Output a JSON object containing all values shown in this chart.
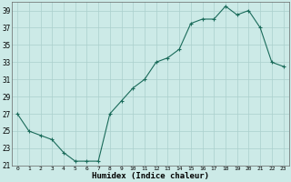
{
  "xlabel": "Humidex (Indice chaleur)",
  "x": [
    0,
    1,
    2,
    3,
    4,
    5,
    6,
    7,
    8,
    9,
    10,
    11,
    12,
    13,
    14,
    15,
    16,
    17,
    18,
    19,
    20,
    21,
    22,
    23
  ],
  "y": [
    27,
    25,
    24.5,
    24,
    22.5,
    21.5,
    21.5,
    21.5,
    27,
    28.5,
    30,
    31,
    33,
    33.5,
    34.5,
    37.5,
    38,
    38,
    39.5,
    38.5,
    39,
    37,
    33,
    32.5
  ],
  "ylim": [
    21,
    40
  ],
  "yticks": [
    21,
    23,
    25,
    27,
    29,
    31,
    33,
    35,
    37,
    39
  ],
  "xticks": [
    0,
    1,
    2,
    3,
    4,
    5,
    6,
    7,
    8,
    9,
    10,
    11,
    12,
    13,
    14,
    15,
    16,
    17,
    18,
    19,
    20,
    21,
    22,
    23
  ],
  "line_color": "#1a6b5a",
  "marker": "+",
  "bg_color": "#cceae7",
  "grid_color": "#aacfcc",
  "figsize": [
    3.2,
    2.0
  ],
  "dpi": 100
}
